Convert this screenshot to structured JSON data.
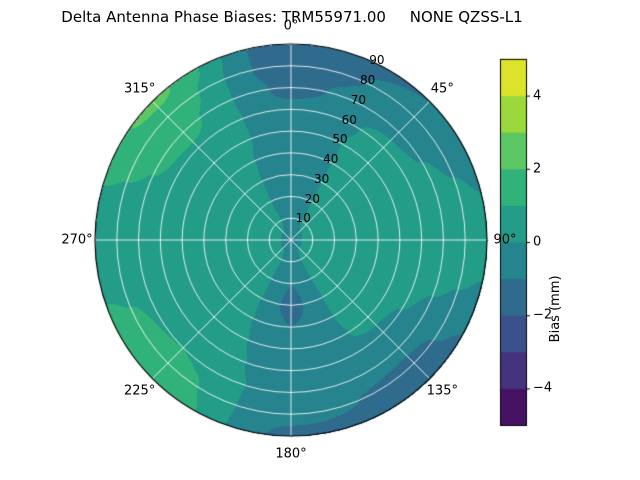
{
  "title": "Delta Antenna Phase Biases: TRM55971.00     NONE QZSS-L1",
  "colors": {
    "background": "#ffffff",
    "grid_line": "rgba(255,255,255,0.85)",
    "axes_edge": "#000000",
    "text": "#000000"
  },
  "chart_data": {
    "type": "heatmap",
    "projection": "polar",
    "title": "Delta Antenna Phase Biases: TRM55971.00     NONE QZSS-L1",
    "angular_ticks": [
      "0°",
      "45°",
      "90°",
      "135°",
      "180°",
      "225°",
      "270°",
      "315°"
    ],
    "angular_tick_angles_deg": [
      0,
      45,
      90,
      135,
      180,
      225,
      270,
      315
    ],
    "radial_ticks": [
      10,
      20,
      30,
      40,
      50,
      60,
      70,
      80,
      90
    ],
    "radial_range": [
      0,
      90
    ],
    "radial_label_angle_deg": 25,
    "grid": true,
    "colorbar": {
      "label": "Bias (mm)",
      "ticks": [
        -4,
        -2,
        0,
        2,
        4
      ],
      "range": [
        -5,
        5
      ],
      "colormap": "viridis",
      "n_bands": 10
    },
    "azimuth_deg": [
      0,
      45,
      90,
      135,
      180,
      225,
      270,
      315
    ],
    "zenith_deg": [
      0,
      10,
      20,
      30,
      40,
      50,
      60,
      70,
      80,
      90
    ],
    "values_mm": [
      [
        -0.5,
        -0.5,
        -0.5,
        -0.5,
        -0.5,
        -0.5,
        -0.5,
        -0.5
      ],
      [
        -0.8,
        0.3,
        0.6,
        0.5,
        -0.8,
        0.4,
        0.6,
        0.4
      ],
      [
        -1.0,
        0.5,
        0.7,
        0.5,
        -1.0,
        0.5,
        0.7,
        0.5
      ],
      [
        -1.0,
        0.5,
        0.8,
        0.5,
        -1.2,
        0.6,
        0.8,
        0.6
      ],
      [
        -0.8,
        0.4,
        0.8,
        0.4,
        -1.0,
        0.6,
        0.8,
        0.6
      ],
      [
        -0.6,
        0.3,
        0.8,
        0.2,
        -0.8,
        0.7,
        0.8,
        0.7
      ],
      [
        -0.8,
        0.2,
        0.8,
        -0.2,
        -0.6,
        0.8,
        0.8,
        0.9
      ],
      [
        -1.2,
        -0.2,
        0.7,
        -0.8,
        -0.5,
        1.0,
        0.7,
        1.2
      ],
      [
        -1.6,
        -0.6,
        0.5,
        -1.2,
        -0.8,
        1.4,
        0.6,
        1.6
      ],
      [
        -1.8,
        -1.0,
        0.3,
        -1.5,
        -1.2,
        1.8,
        0.5,
        2.2
      ]
    ]
  }
}
